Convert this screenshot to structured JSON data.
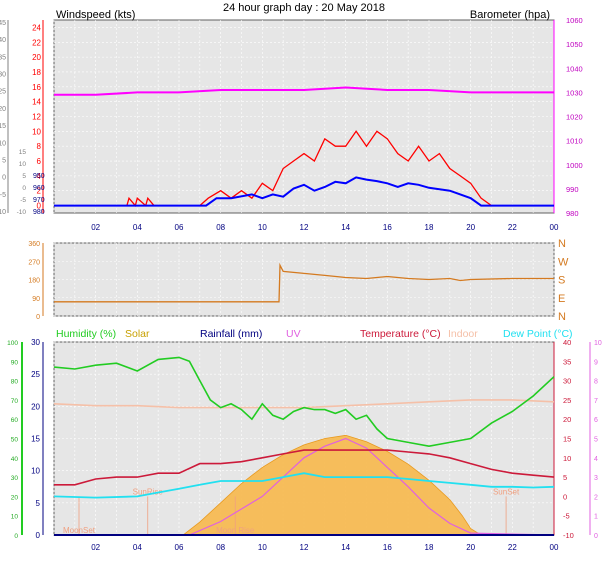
{
  "header": {
    "title": "24 hour graph day : 20 May 2018"
  },
  "colors": {
    "wind_avg": "#0000ff",
    "wind_gust": "#ff0000",
    "wind_label": "#ff0000",
    "baro": "#ff00ff",
    "baro_label": "#c000c0",
    "grey_trace": "#b4b4b4",
    "dir": "#d47a20",
    "humidity": "#22cc22",
    "solar": "#f7b84b",
    "rain": "#000080",
    "uv": "#e060e0",
    "temp": "#cc1a3a",
    "indoor": "#f5c0a8",
    "dew": "#22e0f0",
    "sunrise": "#f0a080"
  },
  "chart_data": [
    {
      "type": "line",
      "name": "wind-baro",
      "title": "24 hour graph day : 20 May 2018",
      "ylabel": "Windspeed (kts)",
      "y2label": "Barometer (hpa)",
      "x_ticks": [
        "02",
        "04",
        "06",
        "08",
        "10",
        "12",
        "14",
        "16",
        "18",
        "20",
        "22",
        "00"
      ],
      "y_ticks": [
        "0",
        "2",
        "4",
        "6",
        "8",
        "10",
        "12",
        "14",
        "16",
        "18",
        "20",
        "22",
        "24"
      ],
      "y_outer_ticks": [
        "-10",
        "-5",
        "0",
        "5",
        "10",
        "15",
        "20",
        "25",
        "30",
        "35",
        "40",
        "45"
      ],
      "y2_ticks": [
        "980",
        "990",
        "1000",
        "1010",
        "1020",
        "1030",
        "1040",
        "1050",
        "1060"
      ],
      "extra_ticks": [
        "980",
        "970",
        "960",
        "950"
      ],
      "extra_outer_ticks": [
        "-10",
        "-5",
        "0",
        "5",
        "10",
        "15"
      ],
      "ylim": [
        0,
        25
      ],
      "grid": true,
      "series": [
        {
          "name": "avg_speed",
          "x": [
            0,
            6,
            7.3,
            7.8,
            8.5,
            9.5,
            10,
            10.5,
            11,
            11.5,
            12,
            12.5,
            13,
            13.5,
            14,
            14.5,
            15,
            15.5,
            16,
            16.5,
            17,
            17.5,
            18,
            18.5,
            19,
            19.5,
            20,
            20.5,
            24
          ],
          "values": [
            0,
            0,
            0,
            1,
            1,
            1.5,
            1,
            1.5,
            1.2,
            2.3,
            2.8,
            2,
            2.5,
            3.2,
            3,
            3.8,
            3.5,
            3.3,
            3,
            2.5,
            3,
            2.8,
            2.4,
            2.2,
            2,
            1.5,
            1,
            0,
            0
          ]
        },
        {
          "name": "gust_speed",
          "x": [
            0,
            3.5,
            3.6,
            3.9,
            4,
            4.4,
            4.5,
            4.8,
            7,
            7.4,
            8,
            8.5,
            9,
            9.5,
            10,
            10.5,
            11,
            11.5,
            12,
            12.5,
            13,
            13.5,
            14,
            14.5,
            15,
            15.5,
            16,
            16.5,
            17,
            17.5,
            18,
            18.5,
            19,
            19.5,
            20,
            20.5,
            21,
            24
          ],
          "values": [
            0,
            0,
            1,
            0,
            1,
            0,
            1,
            0,
            0,
            1,
            2,
            1,
            2,
            1,
            3,
            2,
            5,
            6,
            7,
            6,
            9,
            8,
            8,
            10,
            8,
            10,
            9,
            7,
            6,
            8,
            6,
            7,
            5,
            4,
            3,
            1,
            0,
            0
          ]
        },
        {
          "name": "barometer",
          "x": [
            0,
            2,
            4,
            6,
            8,
            10,
            12,
            14,
            16,
            18,
            20,
            22,
            24
          ],
          "values": [
            1029,
            1029,
            1030,
            1030,
            1031,
            1031,
            1031,
            1032,
            1031,
            1031,
            1030,
            1030,
            1030
          ]
        }
      ]
    },
    {
      "type": "line",
      "name": "direction",
      "y_ticks": [
        "0",
        "90",
        "180",
        "270",
        "360"
      ],
      "y2_ticks": [
        "N",
        "E",
        "S",
        "W",
        "N"
      ],
      "ylim": [
        0,
        360
      ],
      "series": [
        {
          "name": "wind_direction",
          "x": [
            0,
            10.8,
            10.85,
            11,
            12,
            13,
            14,
            15,
            16,
            17,
            18,
            19,
            19.5,
            20,
            22,
            24
          ],
          "values": [
            70,
            70,
            250,
            220,
            210,
            200,
            190,
            185,
            195,
            185,
            180,
            185,
            175,
            180,
            185,
            185
          ]
        }
      ]
    },
    {
      "type": "area",
      "name": "weather",
      "legend": [
        "Humidity (%)",
        "Solar",
        "Rainfall (mm)",
        "UV",
        "Temperature (°C)",
        "Indoor",
        "Dew Point (°C)"
      ],
      "y_ticks": [
        "0",
        "5",
        "10",
        "15",
        "20",
        "25",
        "30"
      ],
      "y_outer_ticks": [
        "0",
        "10",
        "20",
        "30",
        "40",
        "50",
        "60",
        "70",
        "80",
        "90",
        "100"
      ],
      "y2_ticks": [
        "-10",
        "-5",
        "0",
        "5",
        "10",
        "15",
        "20",
        "25",
        "30",
        "35",
        "40"
      ],
      "y2_outer_ticks": [
        "0",
        "1",
        "2",
        "3",
        "4",
        "5",
        "6",
        "7",
        "8",
        "9",
        "10"
      ],
      "x_ticks": [
        "02",
        "04",
        "06",
        "08",
        "10",
        "12",
        "14",
        "16",
        "18",
        "20",
        "22",
        "00"
      ],
      "annotations": [
        "SunRise",
        "SunSet",
        "MoonSet",
        "Moon Rise"
      ],
      "annotation_x": [
        4.5,
        21.7,
        1.2,
        8.7
      ],
      "series": [
        {
          "name": "humidity",
          "x": [
            0,
            1,
            2,
            3,
            4,
            5,
            6,
            6.5,
            7,
            7.5,
            8,
            8.5,
            9,
            9.5,
            10,
            10.5,
            11,
            11.5,
            12,
            12.5,
            13,
            13.5,
            14,
            14.5,
            15,
            15.5,
            16,
            17,
            18,
            19,
            20,
            21,
            22,
            23,
            24
          ],
          "values": [
            87,
            86,
            88,
            89,
            85,
            91,
            92,
            90,
            80,
            70,
            66,
            68,
            65,
            60,
            68,
            62,
            60,
            64,
            66,
            65,
            65,
            63,
            65,
            60,
            62,
            55,
            50,
            48,
            46,
            48,
            50,
            58,
            64,
            72,
            82
          ]
        },
        {
          "name": "solar",
          "x": [
            0,
            6.2,
            7,
            8,
            9,
            10,
            11,
            12,
            13,
            14,
            15,
            16,
            17,
            18,
            19,
            19.6,
            20,
            20.5,
            24
          ],
          "values": [
            0,
            0,
            2,
            5,
            8,
            10.5,
            12.5,
            14,
            15,
            15.5,
            14.5,
            13,
            11,
            8.5,
            5.5,
            3,
            1,
            0,
            0
          ]
        },
        {
          "name": "uv",
          "x": [
            0,
            6.5,
            8,
            10,
            11,
            12,
            13,
            14,
            15,
            16,
            16.5,
            17,
            18,
            19,
            20,
            24
          ],
          "values": [
            0,
            0,
            0.7,
            2,
            3,
            4,
            4.6,
            5,
            4.5,
            3.5,
            3,
            2.5,
            1.4,
            0.6,
            0.1,
            0
          ]
        },
        {
          "name": "temperature",
          "x": [
            0,
            1,
            2,
            3,
            4,
            5,
            6,
            7,
            8,
            9,
            10,
            11,
            12,
            13,
            14,
            15,
            16,
            17,
            18,
            19,
            20,
            21,
            22,
            23,
            24
          ],
          "values": [
            3,
            3,
            4.5,
            5,
            5,
            6,
            6,
            8.5,
            8.5,
            9,
            10,
            11,
            12,
            12,
            12,
            12,
            12,
            11.5,
            11,
            10,
            8.5,
            7,
            6,
            5.5,
            5
          ]
        },
        {
          "name": "indoor",
          "x": [
            0,
            2,
            4,
            6,
            8,
            10,
            12,
            14,
            16,
            18,
            20,
            22,
            24
          ],
          "values": [
            24,
            23.5,
            23.5,
            23,
            23,
            23,
            23,
            23.5,
            24,
            24.5,
            25,
            25,
            24.5
          ]
        },
        {
          "name": "dew_point",
          "x": [
            0,
            2,
            4,
            5,
            6,
            7,
            8,
            9,
            10,
            11,
            12,
            13,
            14,
            15,
            16,
            17,
            18,
            19,
            20,
            21,
            22,
            23,
            24
          ],
          "values": [
            0,
            -0.3,
            0,
            1,
            2,
            3,
            4,
            4,
            4,
            5,
            6,
            5,
            5,
            5,
            5,
            4.5,
            4,
            3.5,
            3,
            2.5,
            2.5,
            2.3,
            2.5
          ]
        }
      ]
    }
  ]
}
